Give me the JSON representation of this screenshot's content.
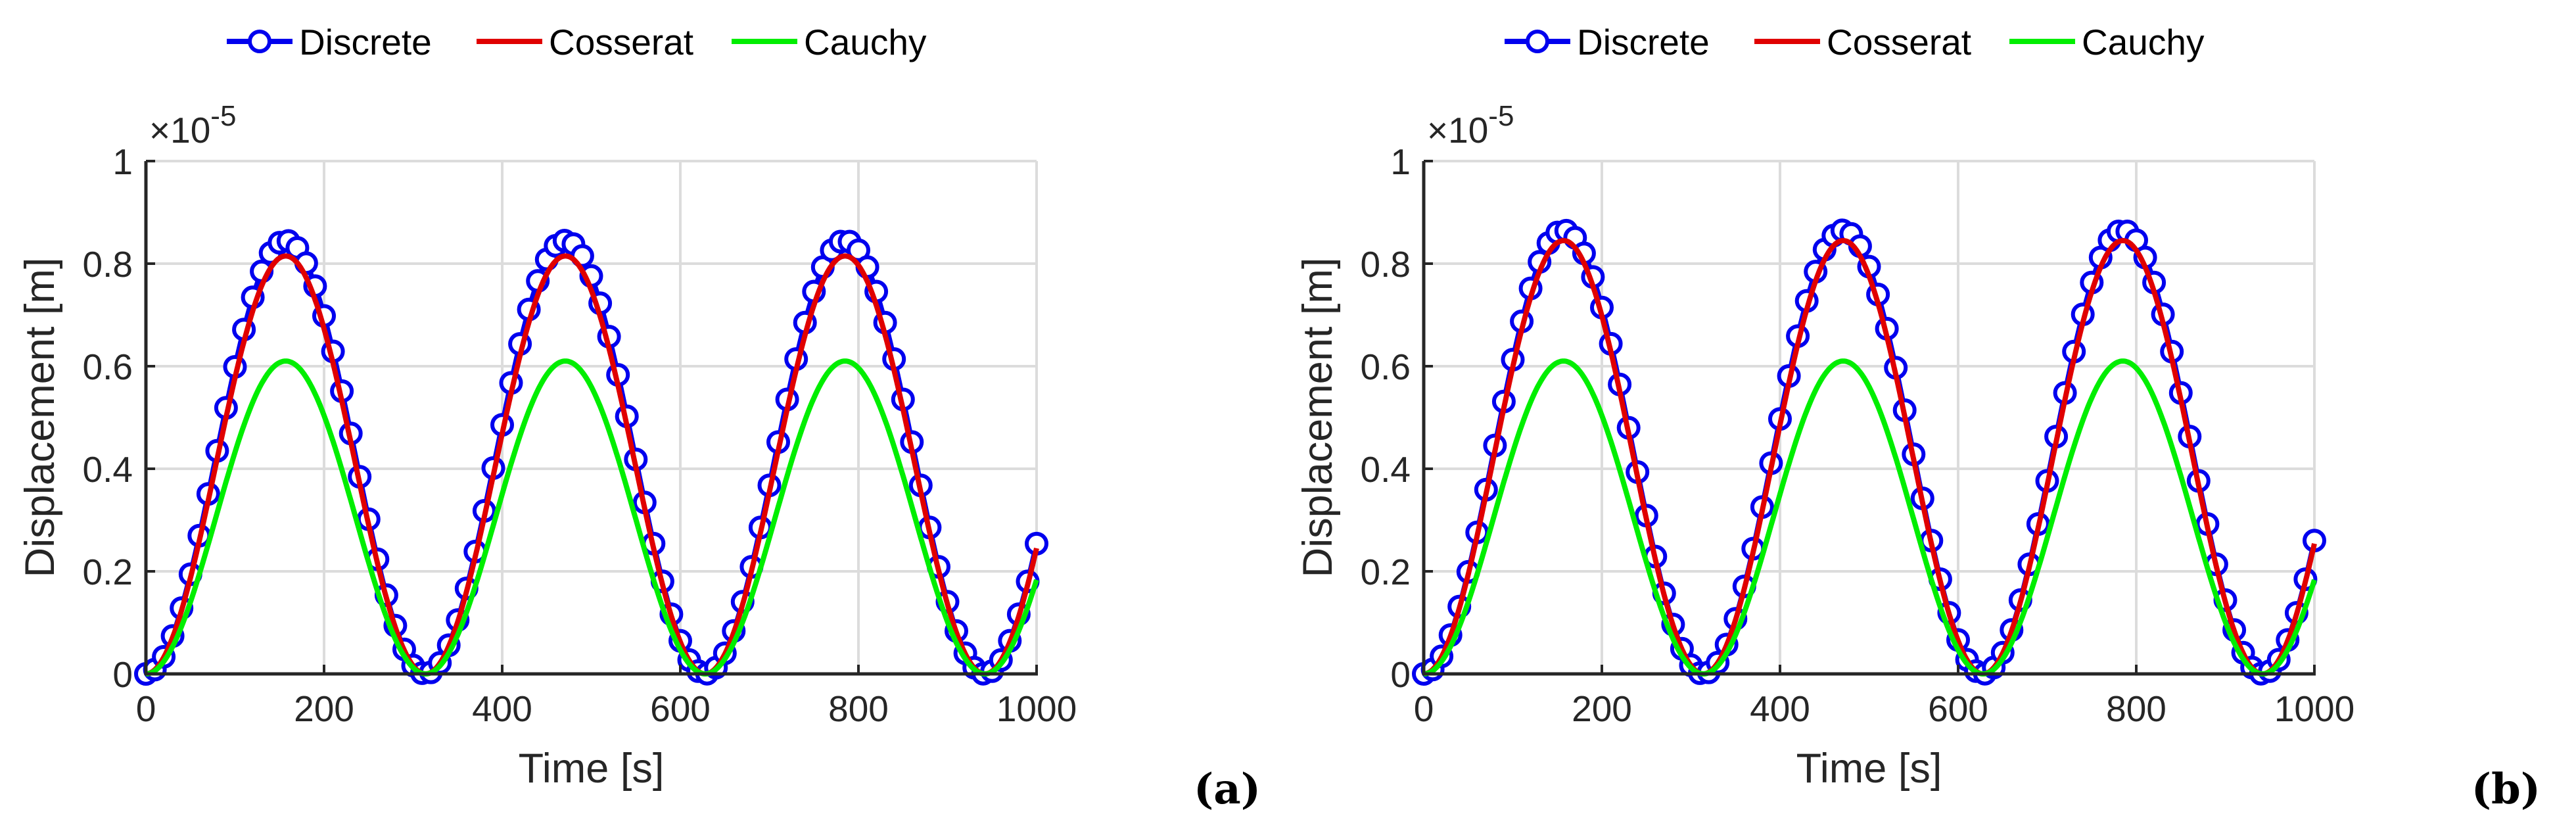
{
  "chart_data": [
    {
      "panel_label": "(a)",
      "type": "line",
      "xlabel": "Time [s]",
      "ylabel": "Displacement [m]",
      "y_exponent_label": "×10",
      "y_exponent_power": "-5",
      "xlim": [
        0,
        1000
      ],
      "ylim": [
        0,
        1
      ],
      "xticks": [
        "0",
        "200",
        "400",
        "600",
        "800",
        "1000"
      ],
      "yticks": [
        "0",
        "0.2",
        "0.4",
        "0.6",
        "0.8",
        "1"
      ],
      "grid": true,
      "legend_position": "top, outside, horizontal",
      "period": 314,
      "series": [
        {
          "name": "Discrete",
          "color": "#0000ee",
          "marker": "circle",
          "amplitude": 0.845
        },
        {
          "name": "Cosserat",
          "color": "#e00000",
          "marker": "none",
          "amplitude": 0.815
        },
        {
          "name": "Cauchy",
          "color": "#00ee00",
          "marker": "none",
          "amplitude": 0.61
        }
      ]
    },
    {
      "panel_label": "(b)",
      "type": "line",
      "xlabel": "Time [s]",
      "ylabel": "Displacement [m]",
      "y_exponent_label": "×10",
      "y_exponent_power": "-5",
      "xlim": [
        0,
        1000
      ],
      "ylim": [
        0,
        1
      ],
      "xticks": [
        "0",
        "200",
        "400",
        "600",
        "800",
        "1000"
      ],
      "yticks": [
        "0",
        "0.2",
        "0.4",
        "0.6",
        "0.8",
        "1"
      ],
      "grid": true,
      "legend_position": "top, outside, horizontal",
      "period": 314,
      "series": [
        {
          "name": "Discrete",
          "color": "#0000ee",
          "marker": "circle",
          "amplitude": 0.865
        },
        {
          "name": "Cosserat",
          "color": "#e00000",
          "marker": "none",
          "amplitude": 0.845
        },
        {
          "name": "Cauchy",
          "color": "#00ee00",
          "marker": "none",
          "amplitude": 0.61
        }
      ]
    }
  ]
}
